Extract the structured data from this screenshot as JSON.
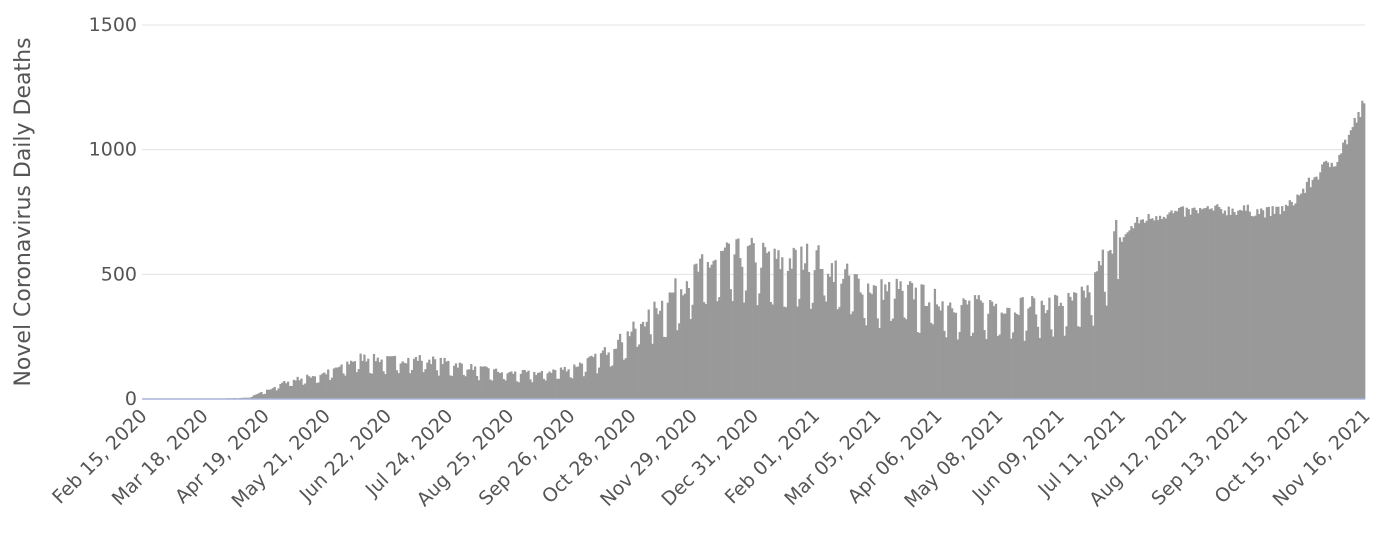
{
  "chart_data": {
    "type": "bar",
    "ylabel": "Novel Coronavirus Daily Deaths",
    "xlabel": "",
    "ylim": [
      0,
      1500
    ],
    "yticks": [
      "0",
      "500",
      "1000",
      "1500"
    ],
    "ytick_values": [
      0,
      500,
      1000,
      1500
    ],
    "xtick_labels": [
      "Feb 15, 2020",
      "Mar 18, 2020",
      "Apr 19, 2020",
      "May 21, 2020",
      "Jun 22, 2020",
      "Jul 24, 2020",
      "Aug 25, 2020",
      "Sep 26, 2020",
      "Oct 28, 2020",
      "Nov 29, 2020",
      "Dec 31, 2020",
      "Feb 01, 2021",
      "Mar 05, 2021",
      "Apr 06, 2021",
      "May 08, 2021",
      "Jun 09, 2021",
      "Jul 11, 2021",
      "Aug 12, 2021",
      "Sep 13, 2021",
      "Oct 15, 2021",
      "Nov 16, 2021"
    ],
    "x_range": [
      "Feb 15, 2020",
      "Nov 16, 2021"
    ],
    "grid": true,
    "bar_color": "#999999",
    "baseline_color": "#aab4d8",
    "series": [
      {
        "trend_points": [
          {
            "date": "Feb 15, 2020",
            "value": 0
          },
          {
            "date": "Mar 18, 2020",
            "value": 0
          },
          {
            "date": "Apr 10, 2020",
            "value": 5
          },
          {
            "date": "Apr 19, 2020",
            "value": 30
          },
          {
            "date": "May 01, 2020",
            "value": 70
          },
          {
            "date": "May 21, 2020",
            "value": 100
          },
          {
            "date": "Jun 08, 2020",
            "value": 160
          },
          {
            "date": "Jun 22, 2020",
            "value": 150
          },
          {
            "date": "Jul 10, 2020",
            "value": 155
          },
          {
            "date": "Jul 24, 2020",
            "value": 140
          },
          {
            "date": "Aug 10, 2020",
            "value": 115
          },
          {
            "date": "Aug 25, 2020",
            "value": 100
          },
          {
            "date": "Sep 10, 2020",
            "value": 100
          },
          {
            "date": "Sep 26, 2020",
            "value": 120
          },
          {
            "date": "Oct 10, 2020",
            "value": 160
          },
          {
            "date": "Oct 28, 2020",
            "value": 260
          },
          {
            "date": "Nov 15, 2020",
            "value": 380
          },
          {
            "date": "Nov 29, 2020",
            "value": 480
          },
          {
            "date": "Dec 15, 2020",
            "value": 550
          },
          {
            "date": "Dec 31, 2020",
            "value": 560
          },
          {
            "date": "Jan 15, 2021",
            "value": 520
          },
          {
            "date": "Feb 01, 2021",
            "value": 550
          },
          {
            "date": "Feb 15, 2021",
            "value": 480
          },
          {
            "date": "Mar 05, 2021",
            "value": 420
          },
          {
            "date": "Mar 20, 2021",
            "value": 420
          },
          {
            "date": "Apr 06, 2021",
            "value": 380
          },
          {
            "date": "Apr 20, 2021",
            "value": 360
          },
          {
            "date": "May 08, 2021",
            "value": 360
          },
          {
            "date": "May 25, 2021",
            "value": 360
          },
          {
            "date": "Jun 09, 2021",
            "value": 370
          },
          {
            "date": "Jun 20, 2021",
            "value": 380
          },
          {
            "date": "Jun 28, 2021",
            "value": 450
          },
          {
            "date": "Jul 05, 2021",
            "value": 600
          },
          {
            "date": "Jul 11, 2021",
            "value": 660
          },
          {
            "date": "Jul 20, 2021",
            "value": 740
          },
          {
            "date": "Aug 01, 2021",
            "value": 770
          },
          {
            "date": "Aug 12, 2021",
            "value": 780
          },
          {
            "date": "Aug 28, 2021",
            "value": 790
          },
          {
            "date": "Sep 13, 2021",
            "value": 790
          },
          {
            "date": "Sep 28, 2021",
            "value": 780
          },
          {
            "date": "Oct 07, 2021",
            "value": 800
          },
          {
            "date": "Oct 15, 2021",
            "value": 870
          },
          {
            "date": "Oct 25, 2021",
            "value": 960
          },
          {
            "date": "Nov 01, 2021",
            "value": 1000
          },
          {
            "date": "Nov 08, 2021",
            "value": 1100
          },
          {
            "date": "Nov 16, 2021",
            "value": 1230
          }
        ]
      }
    ]
  }
}
